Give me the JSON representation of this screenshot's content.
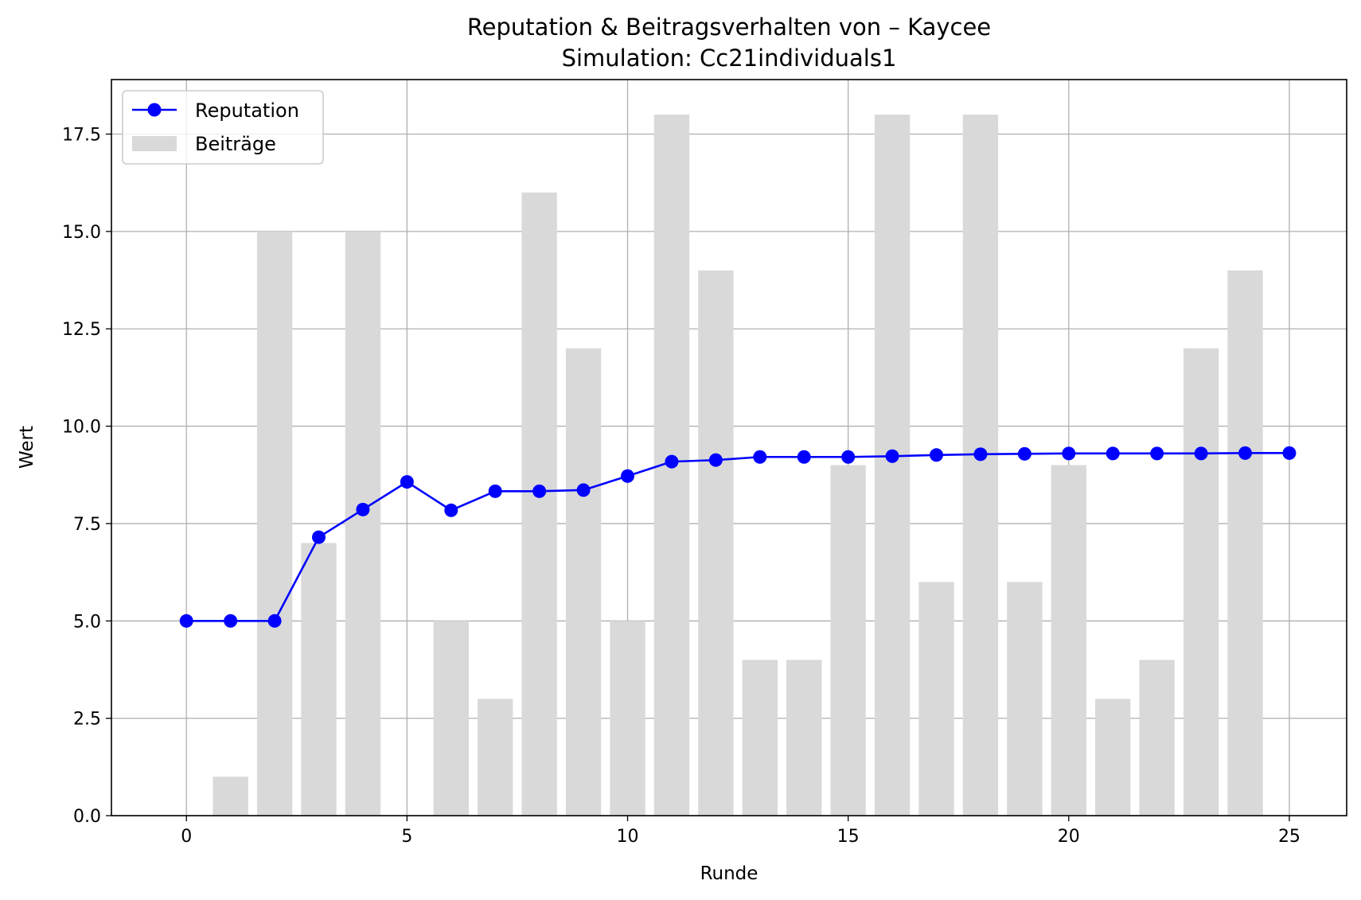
{
  "chart_data": {
    "type": "bar",
    "title": "Reputation & Beitragsverhalten von – Kaycee",
    "subtitle": "Simulation: Cc21individuals1",
    "xlabel": "Runde",
    "ylabel": "Wert",
    "xlim": [
      -1.7,
      26.3
    ],
    "ylim": [
      0,
      18.9
    ],
    "xticks": [
      0,
      5,
      10,
      15,
      20,
      25
    ],
    "xtick_labels": [
      "0",
      "5",
      "10",
      "15",
      "20",
      "25"
    ],
    "yticks": [
      0,
      2.5,
      5,
      7.5,
      10,
      12.5,
      15,
      17.5
    ],
    "ytick_labels": [
      "0.0",
      "2.5",
      "5.0",
      "7.5",
      "10.0",
      "12.5",
      "15.0",
      "17.5"
    ],
    "grid": true,
    "legend_position": "top-left",
    "x": [
      0,
      1,
      2,
      3,
      4,
      5,
      6,
      7,
      8,
      9,
      10,
      11,
      12,
      13,
      14,
      15,
      16,
      17,
      18,
      19,
      20,
      21,
      22,
      23,
      24,
      25
    ],
    "series": [
      {
        "name": "Beiträge",
        "kind": "bar",
        "color": "#d9d9d9",
        "values": [
          0,
          1,
          15,
          7,
          15,
          0,
          5,
          3,
          16,
          12,
          5,
          18,
          14,
          4,
          4,
          9,
          18,
          6,
          18,
          6,
          9,
          3,
          4,
          12,
          14,
          0
        ]
      },
      {
        "name": "Reputation",
        "kind": "line",
        "marker": "circle",
        "color": "#0000ff",
        "values": [
          5.0,
          5.0,
          5.0,
          7.15,
          7.86,
          8.57,
          7.84,
          8.33,
          8.33,
          8.36,
          8.72,
          9.09,
          9.13,
          9.21,
          9.21,
          9.21,
          9.23,
          9.26,
          9.28,
          9.29,
          9.3,
          9.3,
          9.3,
          9.3,
          9.31,
          9.31
        ]
      }
    ]
  }
}
